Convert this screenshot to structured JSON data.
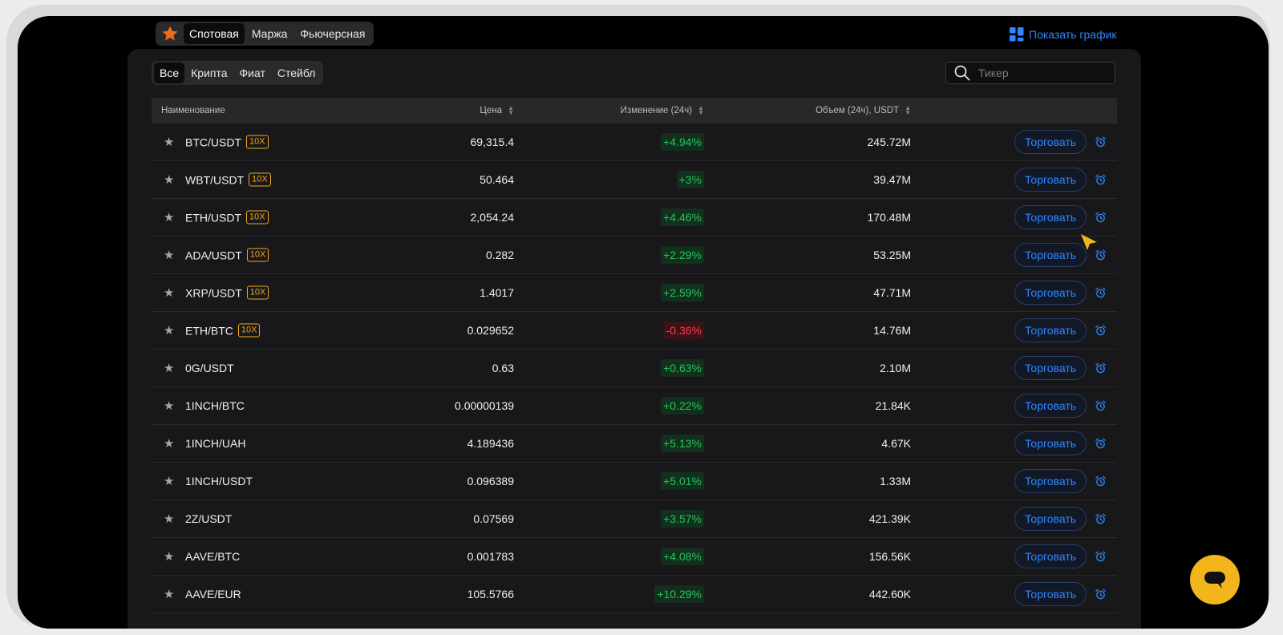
{
  "top_tabs": [
    "Спотовая",
    "Маржа",
    "Фьючерсная"
  ],
  "show_chart_label": "Показать график",
  "sub_tabs": [
    "Все",
    "Крипта",
    "Фиат",
    "Стейбл"
  ],
  "search": {
    "placeholder": "Тикер",
    "value": ""
  },
  "table": {
    "headers": {
      "name": "Наименование",
      "price": "Цена",
      "change": "Изменение (24ч)",
      "volume": "Объем (24ч), USDT"
    },
    "trade_label": "Торговать",
    "rows": [
      {
        "pair": "BTC/USDT",
        "leverage": "10X",
        "price": "69,315.4",
        "change": "+4.94%",
        "direction": "up",
        "volume": "245.72M"
      },
      {
        "pair": "WBT/USDT",
        "leverage": "10X",
        "price": "50.464",
        "change": "+3%",
        "direction": "up",
        "volume": "39.47M"
      },
      {
        "pair": "ETH/USDT",
        "leverage": "10X",
        "price": "2,054.24",
        "change": "+4.46%",
        "direction": "up",
        "volume": "170.48M"
      },
      {
        "pair": "ADA/USDT",
        "leverage": "10X",
        "price": "0.282",
        "change": "+2.29%",
        "direction": "up",
        "volume": "53.25M"
      },
      {
        "pair": "XRP/USDT",
        "leverage": "10X",
        "price": "1.4017",
        "change": "+2.59%",
        "direction": "up",
        "volume": "47.71M"
      },
      {
        "pair": "ETH/BTC",
        "leverage": "10X",
        "price": "0.029652",
        "change": "-0.36%",
        "direction": "down",
        "volume": "14.76M"
      },
      {
        "pair": "0G/USDT",
        "leverage": "",
        "price": "0.63",
        "change": "+0.63%",
        "direction": "up",
        "volume": "2.10M"
      },
      {
        "pair": "1INCH/BTC",
        "leverage": "",
        "price": "0.00000139",
        "change": "+0.22%",
        "direction": "up",
        "volume": "21.84K"
      },
      {
        "pair": "1INCH/UAH",
        "leverage": "",
        "price": "4.189436",
        "change": "+5.13%",
        "direction": "up",
        "volume": "4.67K"
      },
      {
        "pair": "1INCH/USDT",
        "leverage": "",
        "price": "0.096389",
        "change": "+5.01%",
        "direction": "up",
        "volume": "1.33M"
      },
      {
        "pair": "2Z/USDT",
        "leverage": "",
        "price": "0.07569",
        "change": "+3.57%",
        "direction": "up",
        "volume": "421.39K"
      },
      {
        "pair": "AAVE/BTC",
        "leverage": "",
        "price": "0.001783",
        "change": "+4.08%",
        "direction": "up",
        "volume": "156.56K"
      },
      {
        "pair": "AAVE/EUR",
        "leverage": "",
        "price": "105.5766",
        "change": "+10.29%",
        "direction": "up",
        "volume": "442.60K"
      }
    ]
  },
  "colors": {
    "accent": "#2f86ff",
    "positive": "#26c25a",
    "negative": "#ff3b4b",
    "leverage": "#f2a71b",
    "chat_button": "#f3b51c"
  }
}
